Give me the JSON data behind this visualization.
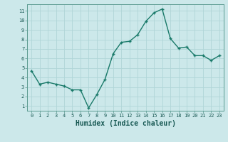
{
  "x": [
    0,
    1,
    2,
    3,
    4,
    5,
    6,
    7,
    8,
    9,
    10,
    11,
    12,
    13,
    14,
    15,
    16,
    17,
    18,
    19,
    20,
    21,
    22,
    23
  ],
  "y": [
    4.7,
    3.3,
    3.5,
    3.3,
    3.1,
    2.7,
    2.7,
    0.8,
    2.2,
    3.8,
    6.5,
    7.7,
    7.8,
    8.5,
    9.9,
    10.8,
    11.2,
    8.1,
    7.1,
    7.2,
    6.3,
    6.3,
    5.8,
    6.3
  ],
  "line_color": "#1a7a6a",
  "marker": "+",
  "marker_size": 3.5,
  "line_width": 1.0,
  "bg_color": "#cce8ea",
  "grid_color": "#b0d5d8",
  "xlabel": "Humidex (Indice chaleur)",
  "xlabel_fontsize": 7,
  "tick_fontsize": 5,
  "ytick_vals": [
    1,
    2,
    3,
    4,
    5,
    6,
    7,
    8,
    9,
    10,
    11
  ],
  "ytick_labels": [
    "1",
    "2",
    "3",
    "4",
    "5",
    "6",
    "7",
    "8",
    "9",
    "10",
    "11"
  ],
  "xtick_labels": [
    "0",
    "1",
    "2",
    "3",
    "4",
    "5",
    "6",
    "7",
    "8",
    "9",
    "10",
    "11",
    "12",
    "13",
    "14",
    "15",
    "16",
    "17",
    "18",
    "19",
    "20",
    "21",
    "22",
    "23"
  ],
  "ylim": [
    0.5,
    11.7
  ],
  "xlim": [
    -0.5,
    23.5
  ]
}
